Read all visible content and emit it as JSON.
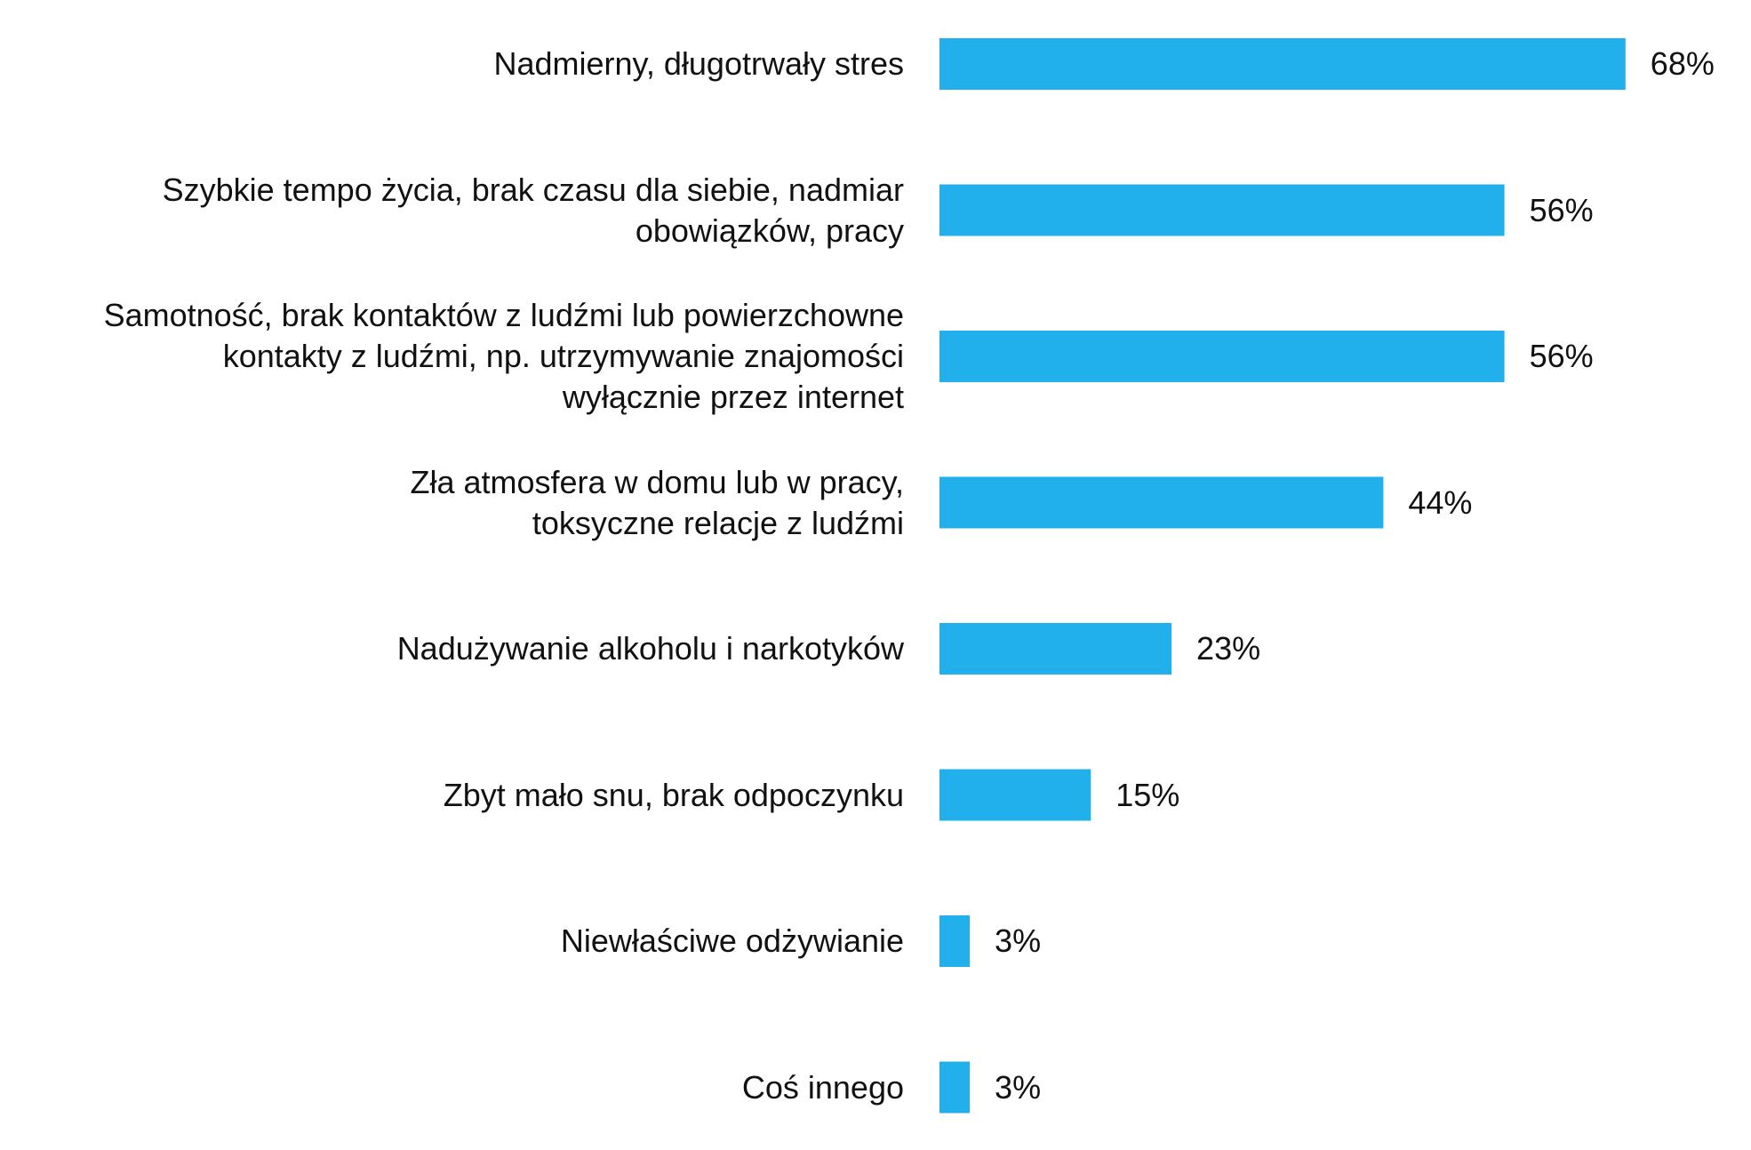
{
  "chart_data": {
    "type": "bar",
    "orientation": "horizontal",
    "title": "",
    "xlabel": "",
    "ylabel": "",
    "bar_color": "#21b0ec",
    "xlim": [
      0,
      100
    ],
    "grid": false,
    "legend": "none",
    "categories": [
      "Nadmierny, długotrwały stres",
      "Szybkie tempo życia, brak czasu dla siebie, nadmiar obowiązków, pracy",
      "Samotność, brak kontaktów z ludźmi lub powierzchowne kontakty z ludźmi, np. utrzymywanie znajomości wyłącznie przez internet",
      "Zła atmosfera w domu lub w pracy, toksyczne relacje z ludźmi",
      "Nadużywanie alkoholu i narkotyków",
      "Zbyt mało snu, brak odpoczynku",
      "Niewłaściwe odżywianie",
      "Coś innego"
    ],
    "label_lines": [
      [
        "Nadmierny, długotrwały stres"
      ],
      [
        "Szybkie tempo życia, brak czasu dla siebie, nadmiar",
        "obowiązków, pracy"
      ],
      [
        "Samotność, brak kontaktów z ludźmi lub powierzchowne",
        "kontakty z ludźmi, np. utrzymywanie znajomości",
        "wyłącznie przez internet"
      ],
      [
        "Zła atmosfera w domu lub w pracy,",
        "toksyczne relacje z ludźmi"
      ],
      [
        "Nadużywanie alkoholu i narkotyków"
      ],
      [
        "Zbyt mało snu, brak odpoczynku"
      ],
      [
        "Niewłaściwe odżywianie"
      ],
      [
        "Coś innego"
      ]
    ],
    "values": [
      68,
      56,
      56,
      44,
      23,
      15,
      3,
      3
    ],
    "value_labels": [
      "68%",
      "56%",
      "56%",
      "44%",
      "23%",
      "15%",
      "3%",
      "3%"
    ]
  }
}
